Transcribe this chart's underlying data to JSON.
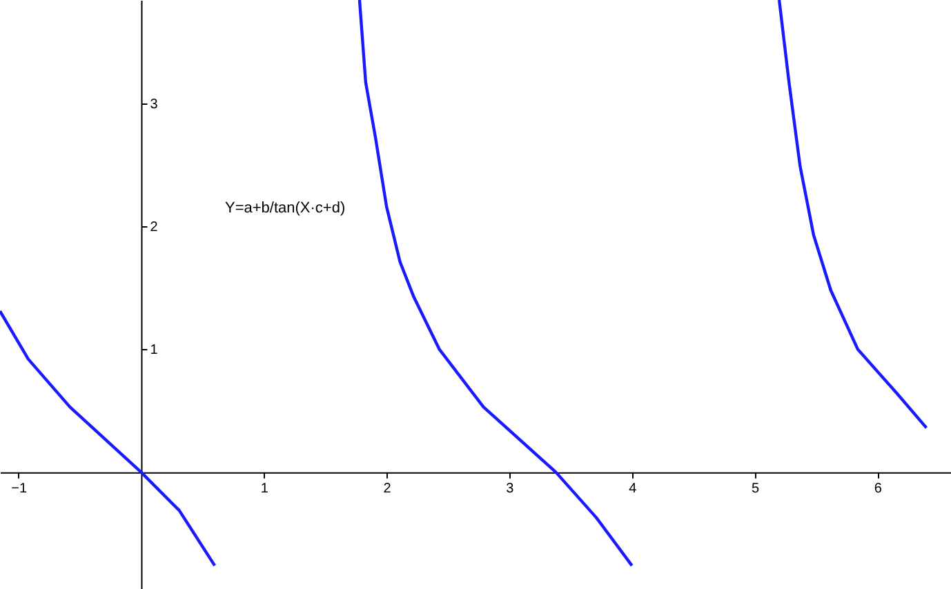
{
  "chart_data": {
    "type": "line",
    "annotations": [
      "Y=a+b/tan(X·c+d)"
    ],
    "xlim": [
      -1.15,
      6.6
    ],
    "ylim": [
      -0.95,
      3.84
    ],
    "xticks": [
      -1,
      1,
      2,
      3,
      4,
      5,
      6
    ],
    "yticks": [
      1,
      2,
      3
    ],
    "grid": false,
    "series": [
      {
        "color": "#1a1aff",
        "x": [
          -1.15,
          -0.92,
          -0.58,
          0,
          0.31,
          0.6
        ],
        "values": [
          1.31,
          0.92,
          0.53,
          0,
          -0.31,
          -0.76
        ]
      },
      {
        "color": "#1a1aff",
        "x": [
          1.78,
          1.83,
          1.91,
          2.0,
          2.11,
          2.22,
          2.43,
          2.79,
          3.38,
          3.71,
          4.0
        ],
        "values": [
          3.84,
          3.17,
          2.72,
          2.16,
          1.71,
          1.43,
          1.0,
          0.53,
          0,
          -0.37,
          -0.76
        ]
      },
      {
        "color": "#1a1aff",
        "x": [
          5.2,
          5.28,
          5.37,
          5.48,
          5.62,
          5.84,
          6.16,
          6.4
        ],
        "values": [
          3.84,
          3.17,
          2.49,
          1.93,
          1.48,
          1.0,
          0.64,
          0.36
        ]
      }
    ]
  }
}
